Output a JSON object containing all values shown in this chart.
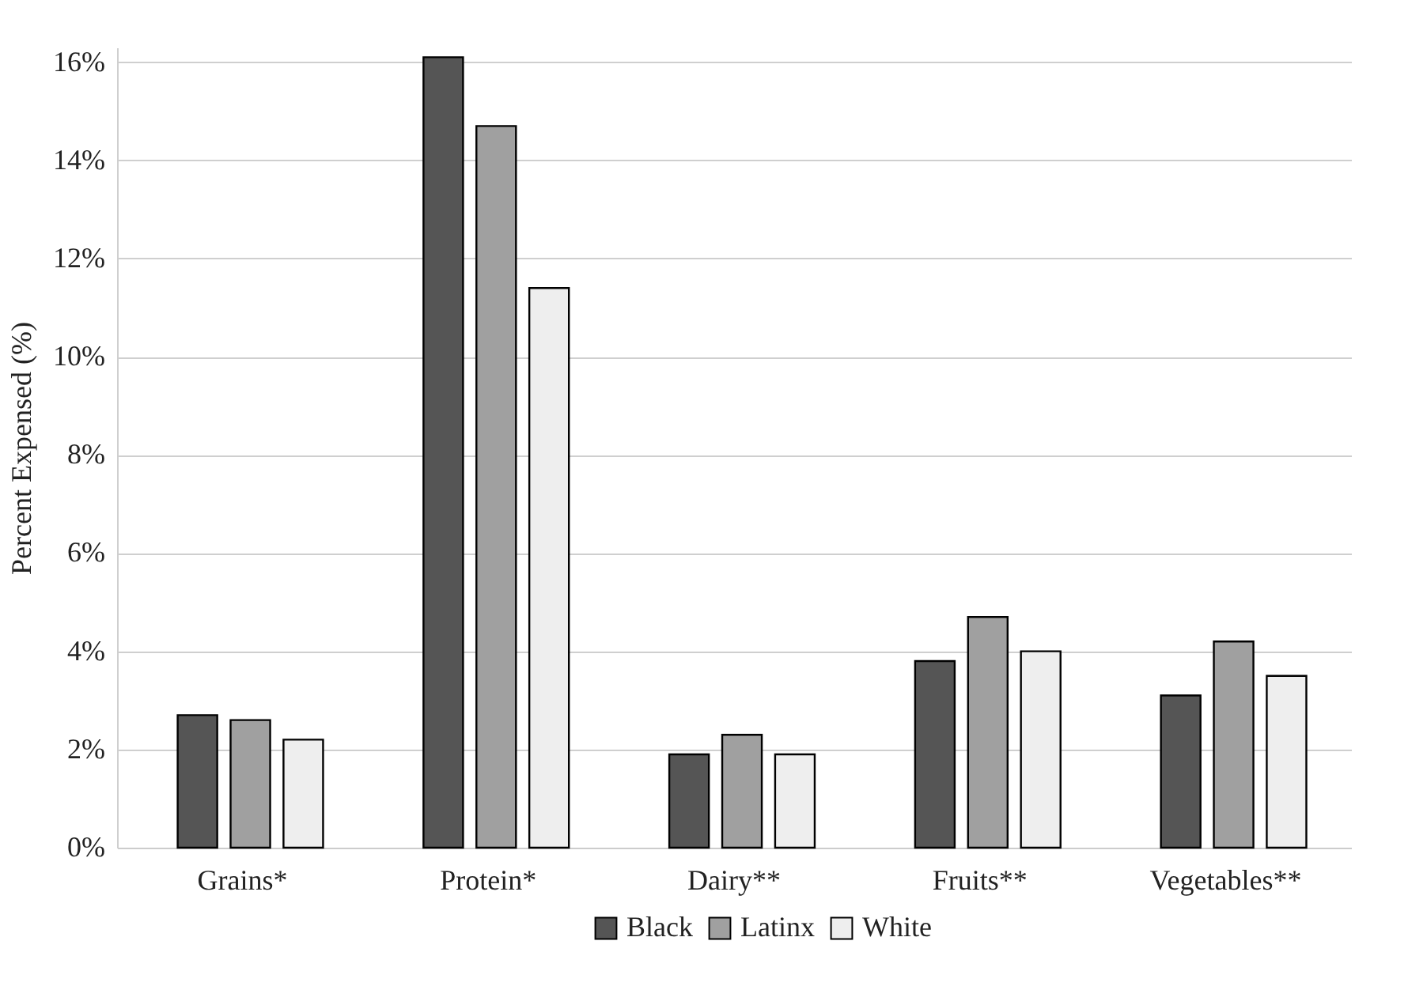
{
  "chart_data": {
    "type": "bar",
    "ylabel": "Percent Expensed (%)",
    "categories": [
      "Grains*",
      "Protein*",
      "Dairy**",
      "Fruits**",
      "Vegetables**"
    ],
    "series": [
      {
        "name": "Black",
        "color": "#555555",
        "values": [
          2.7,
          16.1,
          1.9,
          3.8,
          3.1
        ]
      },
      {
        "name": "Latinx",
        "color": "#a0a0a0",
        "values": [
          2.6,
          14.7,
          2.3,
          4.7,
          4.2
        ]
      },
      {
        "name": "White",
        "color": "#eeeeee",
        "values": [
          2.2,
          11.4,
          1.9,
          4.0,
          3.5
        ]
      }
    ],
    "ylim": [
      0,
      16.3
    ],
    "yticks": [
      {
        "value": 0,
        "label": "0%"
      },
      {
        "value": 2,
        "label": "2%"
      },
      {
        "value": 4,
        "label": "4%"
      },
      {
        "value": 6,
        "label": "6%"
      },
      {
        "value": 8,
        "label": "8%"
      },
      {
        "value": 10,
        "label": "10%"
      },
      {
        "value": 12,
        "label": "12%"
      },
      {
        "value": 14,
        "label": "14%"
      },
      {
        "value": 16,
        "label": "16%"
      }
    ],
    "grid": "y",
    "legend": "bottom"
  }
}
